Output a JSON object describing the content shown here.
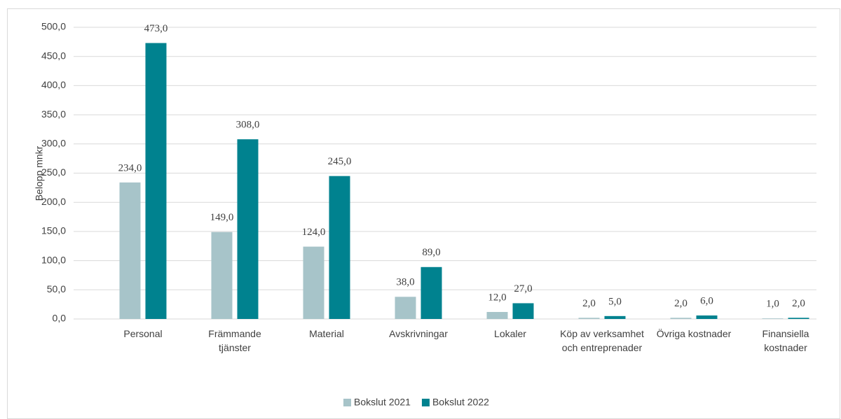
{
  "chart_data": {
    "type": "bar",
    "y_label": "Belopp mnkr",
    "categories": [
      "Personal",
      "Främmande tjänster",
      "Material",
      "Avskrivningar",
      "Lokaler",
      "Köp av verksamhet och entreprenader",
      "Övriga kostnader",
      "Finansiella kostnader"
    ],
    "series": [
      {
        "name": "Bokslut 2021",
        "color": "#a7c4c9",
        "values": [
          234,
          149,
          124,
          38,
          12,
          2,
          2,
          1
        ],
        "value_labels": [
          "234,0",
          "149,0",
          "124,0",
          "38,0",
          "12,0",
          "2,0",
          "2,0",
          "1,0"
        ]
      },
      {
        "name": "Bokslut 2022",
        "color": "#00828f",
        "values": [
          473,
          308,
          245,
          89,
          27,
          5,
          6,
          2
        ],
        "value_labels": [
          "473,0",
          "308,0",
          "245,0",
          "89,0",
          "27,0",
          "5,0",
          "6,0",
          "2,0"
        ]
      }
    ],
    "ylim": [
      0,
      500
    ],
    "yticks": [
      {
        "value": 0,
        "label": "0,0"
      },
      {
        "value": 50,
        "label": "50,0"
      },
      {
        "value": 100,
        "label": "100,0"
      },
      {
        "value": 150,
        "label": "150,0"
      },
      {
        "value": 200,
        "label": "200,0"
      },
      {
        "value": 250,
        "label": "250,0"
      },
      {
        "value": 300,
        "label": "300,0"
      },
      {
        "value": 350,
        "label": "350,0"
      },
      {
        "value": 400,
        "label": "400,0"
      },
      {
        "value": 450,
        "label": "450,0"
      },
      {
        "value": 500,
        "label": "500,0"
      }
    ],
    "grid": true,
    "legend": "bottom"
  }
}
